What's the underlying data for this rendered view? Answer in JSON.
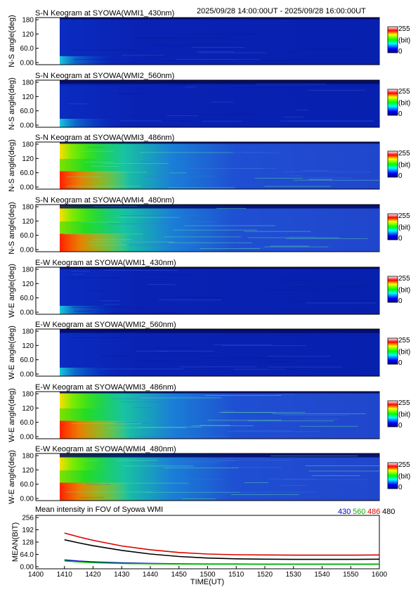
{
  "header": {
    "time_range": "2025/09/28 14:00:00UT - 2025/09/28 16:00:00UT"
  },
  "keograms": [
    {
      "title": "S-N Keogram at SYOWA(WMI1_430nm)",
      "ylabel": "N-S angle(deg)",
      "profile": "dim_430"
    },
    {
      "title": "S-N Keogram at SYOWA(WMI2_560nm)",
      "ylabel": "N-S angle(deg)",
      "profile": "dim_560"
    },
    {
      "title": "S-N Keogram at SYOWA(WMI3_486nm)",
      "ylabel": "N-S angle(deg)",
      "profile": "bright_486"
    },
    {
      "title": "S-N Keogram at SYOWA(WMI4_480nm)",
      "ylabel": "N-S angle(deg)",
      "profile": "bright_480"
    },
    {
      "title": "E-W Keogram at SYOWA(WMI1_430nm)",
      "ylabel": "W-E angle(deg)",
      "profile": "dim_430"
    },
    {
      "title": "E-W Keogram at SYOWA(WMI2_560nm)",
      "ylabel": "W-E angle(deg)",
      "profile": "dim_560"
    },
    {
      "title": "E-W Keogram at SYOWA(WMI3_486nm)",
      "ylabel": "W-E angle(deg)",
      "profile": "bright_486"
    },
    {
      "title": "E-W Keogram at SYOWA(WMI4_480nm)",
      "ylabel": "W-E angle(deg)",
      "profile": "bright_480"
    }
  ],
  "keogram_yticks": [
    "180",
    "120",
    "60.0",
    "0.00"
  ],
  "colorbar": {
    "max_label": "255",
    "unit_label": "(bit)",
    "min_label": "0"
  },
  "mean_panel": {
    "title": "Mean intensity in FOV of Syowa WMI",
    "ylabel": "MEAN(BIT)",
    "yticks": [
      "256",
      "192",
      "128",
      "64.0",
      "0.00"
    ],
    "legend": [
      {
        "label": "430",
        "color": "#0000cc"
      },
      {
        "label": "560",
        "color": "#00bb00"
      },
      {
        "label": "486",
        "color": "#dd0000"
      },
      {
        "label": "480",
        "color": "#000000"
      }
    ]
  },
  "x_axis": {
    "label": "TIME(UT)",
    "ticks": [
      "1400",
      "1410",
      "1420",
      "1430",
      "1440",
      "1450",
      "1500",
      "1510",
      "1520",
      "1530",
      "1540",
      "1550",
      "1600"
    ]
  },
  "chart_data": {
    "type": "line",
    "title": "Mean intensity in FOV of Syowa WMI",
    "xlabel": "TIME(UT)",
    "ylabel": "MEAN(BIT)",
    "x_unit": "minutes after 14:00 UT",
    "xlim": [
      0,
      120
    ],
    "ylim": [
      0,
      256
    ],
    "data_start_minute": 10,
    "x": [
      10,
      15,
      20,
      30,
      40,
      50,
      60,
      70,
      80,
      90,
      100,
      110,
      120
    ],
    "series": [
      {
        "name": "430",
        "color": "#0000cc",
        "values": [
          35,
          29,
          25,
          20,
          17,
          15,
          14,
          14,
          13,
          13,
          13,
          13,
          13
        ]
      },
      {
        "name": "560",
        "color": "#00bb00",
        "values": [
          30,
          25,
          21,
          17,
          15,
          14,
          13,
          13,
          13,
          13,
          13,
          13,
          13
        ]
      },
      {
        "name": "486",
        "color": "#dd0000",
        "values": [
          175,
          155,
          137,
          108,
          88,
          74,
          66,
          62,
          61,
          60,
          60,
          60,
          61
        ]
      },
      {
        "name": "480",
        "color": "#000000",
        "values": [
          140,
          124,
          109,
          85,
          66,
          53,
          45,
          41,
          39,
          38,
          38,
          38,
          39
        ]
      }
    ]
  }
}
